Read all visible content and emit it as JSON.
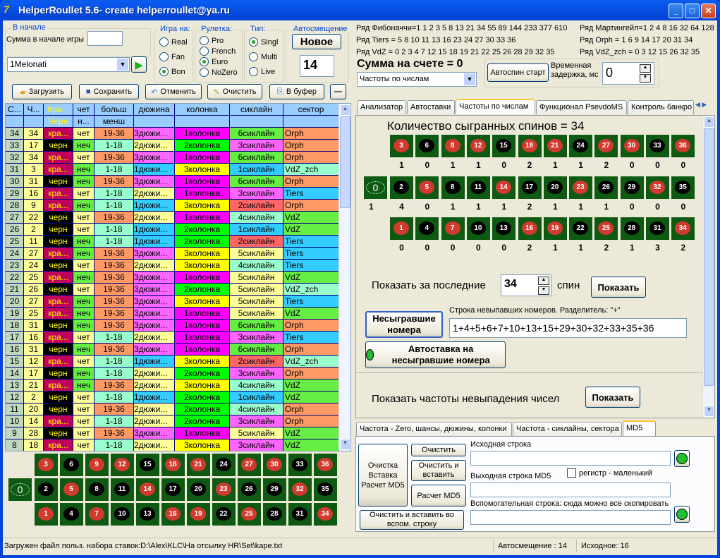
{
  "window": {
    "title": "HelperRoullet 5.6- create helperroullet@ya.ru",
    "icon": "7-logo-icon"
  },
  "start_group": {
    "title": "В начале",
    "sum_label": "Сумма в начале игры",
    "sum_value": ""
  },
  "strategy": {
    "selected": "1Melonati"
  },
  "game_on": {
    "title": "Игра на:",
    "options": [
      "Real",
      "Fan",
      "Bon"
    ],
    "selected": "Bon"
  },
  "roulette": {
    "title": "Рулетка:",
    "options": [
      "Pro",
      "French",
      "Euro",
      "NoZero"
    ],
    "selected": "Euro"
  },
  "type": {
    "title": "Тип:",
    "options": [
      "Singl",
      "Multi",
      "Live"
    ],
    "selected": "Singl"
  },
  "autoshift": {
    "title": "Автосмещение",
    "new_label": "Новое",
    "value": "14"
  },
  "toolbar": {
    "load": "Загрузить",
    "save": "Сохранить",
    "undo": "Отменить",
    "clear": "Очистить",
    "copy": "В буфер",
    "minus": "—"
  },
  "table": {
    "headers": [
      "С...",
      "Ч...",
      "Кра...",
      "чет",
      "больш",
      "дюжина",
      "колонка",
      "сиклайн",
      "сектор"
    ],
    "headers2": [
      "",
      "",
      "Черн",
      "н...",
      "менш",
      "",
      "",
      "",
      ""
    ],
    "rows": [
      [
        "34",
        "34",
        "кра...",
        "чет",
        "19-36",
        "3дюжи...",
        "1колонка",
        "6сиклайн",
        "Orph"
      ],
      [
        "33",
        "17",
        "черн",
        "неч",
        "1-18",
        "2дюжи...",
        "2колонка",
        "3сиклайн",
        "Orph"
      ],
      [
        "32",
        "34",
        "кра...",
        "чет",
        "19-36",
        "3дюжи...",
        "1колонка",
        "6сиклайн",
        "Orph"
      ],
      [
        "31",
        "3",
        "кра...",
        "неч",
        "1-18",
        "1дюжи...",
        "3колонка",
        "1сиклайн",
        "VdZ_zch"
      ],
      [
        "30",
        "31",
        "черн",
        "неч",
        "19-36",
        "3дюжи...",
        "1колонка",
        "6сиклайн",
        "Orph"
      ],
      [
        "29",
        "16",
        "кра...",
        "чет",
        "1-18",
        "2дюжи...",
        "1колонка",
        "3сиклайн",
        "Tiers"
      ],
      [
        "28",
        "9",
        "кра...",
        "неч",
        "1-18",
        "1дюжи...",
        "3колонка",
        "2сиклайн",
        "Orph"
      ],
      [
        "27",
        "22",
        "черн",
        "чет",
        "19-36",
        "2дюжи...",
        "1колонка",
        "4сиклайн",
        "VdZ"
      ],
      [
        "26",
        "2",
        "черн",
        "чет",
        "1-18",
        "1дюжи...",
        "2колонка",
        "1сиклайн",
        "VdZ"
      ],
      [
        "25",
        "11",
        "черн",
        "неч",
        "1-18",
        "1дюжи...",
        "2колонка",
        "2сиклайн",
        "Tiers"
      ],
      [
        "24",
        "27",
        "кра...",
        "неч",
        "19-36",
        "3дюжи...",
        "3колонка",
        "5сиклайн",
        "Tiers"
      ],
      [
        "23",
        "24",
        "черн",
        "чет",
        "19-36",
        "2дюжи...",
        "3колонка",
        "4сиклайн",
        "Tiers"
      ],
      [
        "22",
        "25",
        "кра...",
        "неч",
        "19-36",
        "3дюжи...",
        "1колонка",
        "5сиклайн",
        "VdZ"
      ],
      [
        "21",
        "26",
        "черн",
        "чет",
        "19-36",
        "3дюжи...",
        "2колонка",
        "5сиклайн",
        "VdZ_zch"
      ],
      [
        "20",
        "27",
        "кра...",
        "неч",
        "19-36",
        "3дюжи...",
        "3колонка",
        "5сиклайн",
        "Tiers"
      ],
      [
        "19",
        "25",
        "кра...",
        "неч",
        "19-36",
        "3дюжи...",
        "1колонка",
        "5сиклайн",
        "VdZ"
      ],
      [
        "18",
        "31",
        "черн",
        "неч",
        "19-36",
        "3дюжи...",
        "1колонка",
        "6сиклайн",
        "Orph"
      ],
      [
        "17",
        "16",
        "кра...",
        "чет",
        "1-18",
        "2дюжи...",
        "1колонка",
        "3сиклайн",
        "Tiers"
      ],
      [
        "16",
        "31",
        "черн",
        "неч",
        "19-36",
        "3дюжи...",
        "1колонка",
        "6сиклайн",
        "Orph"
      ],
      [
        "15",
        "12",
        "кра...",
        "чет",
        "1-18",
        "1дюжи...",
        "3колонка",
        "2сиклайн",
        "VdZ_zch"
      ],
      [
        "14",
        "17",
        "черн",
        "неч",
        "1-18",
        "2дюжи...",
        "2колонка",
        "3сиклайн",
        "Orph"
      ],
      [
        "13",
        "21",
        "кра...",
        "неч",
        "19-36",
        "2дюжи...",
        "3колонка",
        "4сиклайн",
        "VdZ"
      ],
      [
        "12",
        "2",
        "черн",
        "чет",
        "1-18",
        "1дюжи...",
        "2колонка",
        "1сиклайн",
        "VdZ"
      ],
      [
        "11",
        "20",
        "черн",
        "чет",
        "19-36",
        "2дюжи...",
        "2колонка",
        "4сиклайн",
        "Orph"
      ],
      [
        "10",
        "14",
        "кра...",
        "чет",
        "1-18",
        "2дюжи...",
        "2колонка",
        "3сиклайн",
        "Orph"
      ],
      [
        "9",
        "28",
        "черн",
        "чет",
        "19-36",
        "3дюжи...",
        "1колонка",
        "5сиклайн",
        "VdZ"
      ],
      [
        "8",
        "18",
        "кра...",
        "чет",
        "1-18",
        "2дюжи...",
        "3колонка",
        "3сиклайн",
        "VdZ"
      ]
    ],
    "colors": {
      "index": "#c0d8c0",
      "number": "#ffff99",
      "кра...": "#c0005c",
      "черн": "#000000",
      "чет": "#ffff99",
      "неч": "#66ee44",
      "19-36": "#ff9966",
      "1-18": "#99ffcc",
      "1дюжи...": "#33ccff",
      "2дюжи...": "#ffff99",
      "3дюжи...": "#ff66ff",
      "1колонка": "#ff00ff",
      "2колонка": "#00ff00",
      "3колонка": "#ffff00",
      "1сиклайн": "#33ccff",
      "2сиклайн": "#ff6666",
      "3сиклайн": "#ff66ff",
      "4сиклайн": "#99ffcc",
      "5сиклайн": "#ffff99",
      "6сиклайн": "#66ee44",
      "Orph": "#ff9966",
      "Tiers": "#33ccff",
      "VdZ": "#66ee44",
      "VdZ_zch": "#99ffcc"
    }
  },
  "layout_rows": [
    [
      3,
      6,
      9,
      12,
      15,
      18,
      21,
      24,
      27,
      30,
      33,
      36
    ],
    [
      2,
      5,
      8,
      11,
      14,
      17,
      20,
      23,
      26,
      29,
      32,
      35
    ],
    [
      1,
      4,
      7,
      10,
      13,
      16,
      19,
      22,
      25,
      28,
      31,
      34
    ]
  ],
  "red_numbers": [
    1,
    3,
    5,
    7,
    9,
    12,
    14,
    16,
    18,
    19,
    21,
    23,
    25,
    27,
    30,
    32,
    34,
    36
  ],
  "colors": {
    "felt": "#0e5a13",
    "red": "#d13a2e",
    "black": "#000000"
  },
  "series": {
    "fib": "Ряд Фибоначчи=1 1 2 3 5 8 13 21 34 55 89 144 233 377 610",
    "mart": "Ряд Мартингейл=1 2 4 8 16 32 64 128 2",
    "tiers": "Ряд Tiers = 5 8 10 11 13 16 23 24 27 30 33 36",
    "orph": "Ряд Orph = 1 6 9 14 17 20 31 34",
    "vdz": "Ряд VdZ = 0 2 3 4 7 12 15 18 19 21 22 25 26 28 29 32 35",
    "vdz_zch": "Ряд VdZ_zch = 0 3 12 15 26 32 35"
  },
  "balance": "Сумма на счете = 0",
  "view_select": "Частоты по числам",
  "autospin": {
    "button": "Автоспин старт",
    "delay_label_1": "Временная",
    "delay_label_2": "задержка, мс",
    "delay_value": "0"
  },
  "tabs": [
    "Анализатор",
    "Автоставки",
    "Частоты по числам",
    "Функционал PsevdoMS",
    "Контроль банкро"
  ],
  "freq": {
    "title": "Количество сыгранных спинов = 34",
    "zero_count": "1",
    "counts": [
      [
        "1",
        "0",
        "1",
        "1",
        "0",
        "2",
        "1",
        "1",
        "2",
        "0",
        "0",
        "0"
      ],
      [
        "4",
        "0",
        "1",
        "1",
        "1",
        "2",
        "1",
        "1",
        "1",
        "0",
        "0",
        "0"
      ],
      [
        "0",
        "0",
        "0",
        "0",
        "0",
        "2",
        "1",
        "1",
        "2",
        "1",
        "3",
        "2"
      ]
    ],
    "last_label": "Показать за последние",
    "last_value": "34",
    "spin_label": "спин",
    "show": "Показать",
    "unplayed_button": "Несыгравшие номера",
    "unplayed_label": "Строка невыпавших номеров. Разделитель: \"+\"",
    "unplayed_value": "1+4+5+6+7+10+13+15+29+30+32+33+35+36",
    "autobet_button": "Автоставка на несыгравшие номера",
    "nonfall_label": "Показать частоты невыпадения чисел",
    "nonfall_show": "Показать"
  },
  "bottom_tabs": [
    "Частота - Zero, шансы, дюжины, колонки",
    "Частота - сиклайны, сектора",
    "MD5"
  ],
  "md5": {
    "big_button": "Очистка Вставка Расчет MD5",
    "clear": "Очистить",
    "clear_paste": "Очистить и вставить",
    "calc": "Расчет MD5",
    "clear_paste_aux": "Очистить и  вставить во вспом. строку",
    "source_label": "Исходная строка",
    "source_value": "",
    "output_label": "Выходная строка MD5",
    "output_value": "",
    "case_label": "регистр  - маленький",
    "case_checked": false,
    "aux_label": "Вспомогательная строка: сюда можно все скопировать",
    "aux_value": ""
  },
  "status": {
    "file": "Загружен файл польз. набора ставок:D:\\Alex\\KLC\\На отсылку HR\\Set\\kape.txt",
    "autoshift": "Автосмещение : 14",
    "source": "Исходное: 16"
  }
}
